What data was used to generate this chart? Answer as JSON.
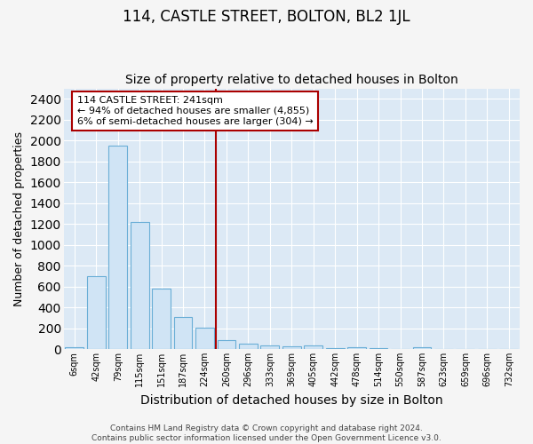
{
  "title": "114, CASTLE STREET, BOLTON, BL2 1JL",
  "subtitle": "Size of property relative to detached houses in Bolton",
  "xlabel": "Distribution of detached houses by size in Bolton",
  "ylabel": "Number of detached properties",
  "bar_labels": [
    "6sqm",
    "42sqm",
    "79sqm",
    "115sqm",
    "151sqm",
    "187sqm",
    "224sqm",
    "260sqm",
    "296sqm",
    "333sqm",
    "369sqm",
    "405sqm",
    "442sqm",
    "478sqm",
    "514sqm",
    "550sqm",
    "587sqm",
    "623sqm",
    "659sqm",
    "696sqm",
    "732sqm"
  ],
  "bar_values": [
    15,
    700,
    1950,
    1220,
    580,
    305,
    205,
    85,
    50,
    35,
    25,
    30,
    5,
    15,
    5,
    0,
    15,
    0,
    0,
    0,
    0
  ],
  "bar_color": "#d0e4f5",
  "bar_edge_color": "#6aaed6",
  "vline_x_idx": 6,
  "vline_color": "#aa0000",
  "annotation_text": "114 CASTLE STREET: 241sqm\n← 94% of detached houses are smaller (4,855)\n6% of semi-detached houses are larger (304) →",
  "annotation_box_facecolor": "#ffffff",
  "annotation_box_edgecolor": "#aa0000",
  "ylim": [
    0,
    2500
  ],
  "yticks": [
    0,
    200,
    400,
    600,
    800,
    1000,
    1200,
    1400,
    1600,
    1800,
    2000,
    2200,
    2400
  ],
  "fig_facecolor": "#f5f5f5",
  "ax_facecolor": "#dce9f5",
  "grid_color": "#ffffff",
  "footer_line1": "Contains HM Land Registry data © Crown copyright and database right 2024.",
  "footer_line2": "Contains public sector information licensed under the Open Government Licence v3.0.",
  "title_fontsize": 12,
  "subtitle_fontsize": 10,
  "axis_label_fontsize": 9,
  "tick_fontsize": 7,
  "annotation_fontsize": 8,
  "footer_fontsize": 6.5
}
